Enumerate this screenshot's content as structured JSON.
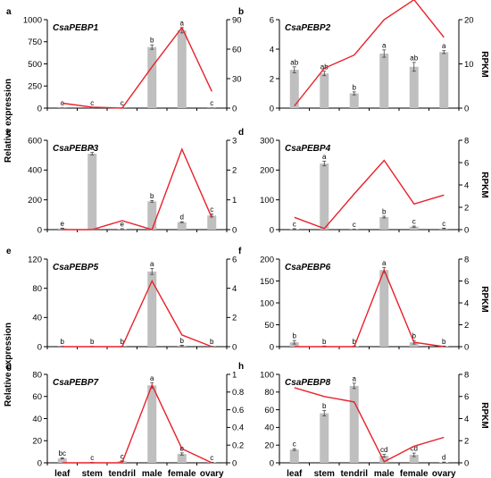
{
  "figure": {
    "left_axis_title": "Relative expression",
    "right_axis_title": "RPKM",
    "bar_color": "#bfbfbf",
    "line_color": "#e8212a"
  },
  "chart_data": [
    {
      "type": "bar+line",
      "panel": "a",
      "title": "CsaPEBP1",
      "categories": [
        "leaf",
        "stem",
        "tendril",
        "male",
        "female",
        "ovary"
      ],
      "show_xlabels": false,
      "y_left": {
        "lim": [
          0,
          1000
        ],
        "ticks": [
          0,
          250,
          500,
          750,
          1000
        ],
        "tick_labels": [
          "0",
          "250",
          "500",
          "750",
          "1000"
        ]
      },
      "y_right": {
        "lim": [
          0,
          90
        ],
        "ticks": [
          0,
          30,
          60,
          90
        ],
        "tick_labels": [
          "0",
          "30",
          "60",
          "90"
        ]
      },
      "series": [
        {
          "kind": "bar",
          "values": [
            2,
            2,
            2,
            690,
            880,
            2
          ],
          "errors": [
            1,
            1,
            1,
            25,
            30,
            1
          ],
          "labels": [
            "c",
            "c",
            "c",
            "b",
            "a",
            "c"
          ]
        },
        {
          "kind": "line",
          "values": [
            5,
            1,
            0,
            42,
            82,
            17
          ]
        }
      ]
    },
    {
      "type": "bar+line",
      "panel": "b",
      "title": "CsaPEBP2",
      "categories": [
        "leaf",
        "stem",
        "tendril",
        "male",
        "female",
        "ovary"
      ],
      "show_xlabels": false,
      "y_left": {
        "lim": [
          0,
          6
        ],
        "ticks": [
          0,
          2,
          4,
          6
        ],
        "tick_labels": [
          "0",
          "2",
          "4",
          "6"
        ]
      },
      "y_right": {
        "lim": [
          0,
          20
        ],
        "ticks": [
          0,
          10,
          20
        ],
        "tick_labels": [
          "0",
          "10",
          "20"
        ]
      },
      "series": [
        {
          "kind": "bar",
          "values": [
            2.6,
            2.35,
            1.0,
            3.7,
            2.8,
            3.8
          ],
          "errors": [
            0.2,
            0.15,
            0.1,
            0.25,
            0.3,
            0.1
          ],
          "labels": [
            "ab",
            "ab",
            "b",
            "a",
            "ab",
            "a"
          ]
        },
        {
          "kind": "line",
          "values": [
            0.5,
            9,
            12,
            20,
            24.5,
            16
          ]
        }
      ]
    },
    {
      "type": "bar+line",
      "panel": "c",
      "title": "CsaPEBP3",
      "categories": [
        "leaf",
        "stem",
        "tendril",
        "male",
        "female",
        "ovary"
      ],
      "show_xlabels": false,
      "y_left": {
        "lim": [
          0,
          600
        ],
        "ticks": [
          0,
          200,
          400,
          600
        ],
        "tick_labels": [
          "0",
          "200",
          "400",
          "600"
        ]
      },
      "y_right": {
        "lim": [
          0,
          3
        ],
        "ticks": [
          0,
          1,
          2,
          3
        ],
        "tick_labels": [
          "0",
          "1",
          "2",
          "3"
        ]
      },
      "series": [
        {
          "kind": "bar",
          "values": [
            8,
            510,
            5,
            190,
            50,
            95
          ],
          "errors": [
            2,
            8,
            1,
            6,
            3,
            10
          ],
          "labels": [
            "e",
            "a",
            "e",
            "b",
            "d",
            "c"
          ]
        },
        {
          "kind": "line",
          "values": [
            0,
            0,
            0.3,
            0,
            2.7,
            0.4
          ]
        }
      ]
    },
    {
      "type": "bar+line",
      "panel": "d",
      "title": "CsaPEBP4",
      "categories": [
        "leaf",
        "stem",
        "tendril",
        "male",
        "female",
        "ovary"
      ],
      "show_xlabels": false,
      "y_left": {
        "lim": [
          0,
          300
        ],
        "ticks": [
          0,
          100,
          200,
          300
        ],
        "tick_labels": [
          "0",
          "100",
          "200",
          "300"
        ]
      },
      "y_right": {
        "lim": [
          0,
          8
        ],
        "ticks": [
          0,
          2,
          4,
          6,
          8
        ],
        "tick_labels": [
          "0",
          "2",
          "4",
          "6",
          "8"
        ]
      },
      "series": [
        {
          "kind": "bar",
          "values": [
            2,
            222,
            1,
            42,
            10,
            4
          ],
          "errors": [
            1,
            8,
            0.5,
            3,
            2,
            1
          ],
          "labels": [
            "c",
            "a",
            "c",
            "b",
            "c",
            "c"
          ]
        },
        {
          "kind": "line",
          "values": [
            1.1,
            0.1,
            3.2,
            6.2,
            2.3,
            3.1
          ]
        }
      ]
    },
    {
      "type": "bar+line",
      "panel": "e",
      "title": "CsaPEBP5",
      "categories": [
        "leaf",
        "stem",
        "tendril",
        "male",
        "female",
        "ovary"
      ],
      "show_xlabels": false,
      "y_left": {
        "lim": [
          0,
          120
        ],
        "ticks": [
          0,
          40,
          80,
          120
        ],
        "tick_labels": [
          "0",
          "40",
          "80",
          "120"
        ]
      },
      "y_right": {
        "lim": [
          0,
          6
        ],
        "ticks": [
          0,
          2,
          4,
          6
        ],
        "tick_labels": [
          "0",
          "2",
          "4",
          "6"
        ]
      },
      "series": [
        {
          "kind": "bar",
          "values": [
            0.3,
            0.3,
            0.3,
            103,
            1.5,
            0.3
          ],
          "errors": [
            0.2,
            0.2,
            0.2,
            4,
            0.5,
            0.2
          ],
          "labels": [
            "b",
            "b",
            "b",
            "a",
            "b",
            "b"
          ]
        },
        {
          "kind": "line",
          "values": [
            0,
            0,
            0,
            4.5,
            0.8,
            0
          ]
        }
      ]
    },
    {
      "type": "bar+line",
      "panel": "f",
      "title": "CsaPEBP6",
      "categories": [
        "leaf",
        "stem",
        "tendril",
        "male",
        "female",
        "ovary"
      ],
      "show_xlabels": false,
      "y_left": {
        "lim": [
          0,
          200
        ],
        "ticks": [
          0,
          50,
          100,
          150,
          200
        ],
        "tick_labels": [
          "0",
          "50",
          "100",
          "150",
          "200"
        ]
      },
      "y_right": {
        "lim": [
          0,
          8
        ],
        "ticks": [
          0,
          2,
          4,
          6,
          8
        ],
        "tick_labels": [
          "0",
          "2",
          "4",
          "6",
          "8"
        ]
      },
      "series": [
        {
          "kind": "bar",
          "values": [
            10,
            1,
            1,
            175,
            10,
            1
          ],
          "errors": [
            4,
            0.5,
            0.5,
            6,
            4,
            0.5
          ],
          "labels": [
            "b",
            "b",
            "b",
            "a",
            "b",
            "b"
          ]
        },
        {
          "kind": "line",
          "values": [
            0,
            0,
            0,
            7.0,
            0.4,
            0
          ]
        }
      ]
    },
    {
      "type": "bar+line",
      "panel": "g",
      "title": "CsaPEBP7",
      "categories": [
        "leaf",
        "stem",
        "tendril",
        "male",
        "female",
        "ovary"
      ],
      "show_xlabels": true,
      "y_left": {
        "lim": [
          0,
          80
        ],
        "ticks": [
          0,
          20,
          40,
          60,
          80
        ],
        "tick_labels": [
          "0",
          "20",
          "40",
          "60",
          "80"
        ]
      },
      "y_right": {
        "lim": [
          0,
          1
        ],
        "ticks": [
          0,
          0.2,
          0.4,
          0.6,
          0.8,
          1
        ],
        "tick_labels": [
          "0",
          "0.2",
          "0.4",
          "0.6",
          "0.8",
          "1"
        ]
      },
      "series": [
        {
          "kind": "bar",
          "values": [
            4,
            0.3,
            1.5,
            70,
            8,
            0.3
          ],
          "errors": [
            0.5,
            0.2,
            0.3,
            2.5,
            1,
            0.2
          ],
          "labels": [
            "bc",
            "c",
            "c",
            "a",
            "b",
            "c"
          ]
        },
        {
          "kind": "line",
          "values": [
            0,
            0,
            0,
            0.88,
            0.16,
            0
          ]
        }
      ]
    },
    {
      "type": "bar+line",
      "panel": "h",
      "title": "CsaPEBP8",
      "categories": [
        "leaf",
        "stem",
        "tendril",
        "male",
        "female",
        "ovary"
      ],
      "show_xlabels": true,
      "y_left": {
        "lim": [
          0,
          100
        ],
        "ticks": [
          0,
          20,
          40,
          60,
          80,
          100
        ],
        "tick_labels": [
          "0",
          "20",
          "40",
          "60",
          "80",
          "100"
        ]
      },
      "y_right": {
        "lim": [
          0,
          8
        ],
        "ticks": [
          0,
          2,
          4,
          6,
          8
        ],
        "tick_labels": [
          "0",
          "2",
          "4",
          "6",
          "8"
        ]
      },
      "series": [
        {
          "kind": "bar",
          "values": [
            15,
            56,
            87,
            8,
            9,
            0.5
          ],
          "errors": [
            1,
            3,
            3,
            1.5,
            2,
            0.3
          ],
          "labels": [
            "c",
            "b",
            "a",
            "cd",
            "cd",
            "d"
          ]
        },
        {
          "kind": "line",
          "values": [
            6.8,
            6.0,
            5.5,
            0.1,
            1.5,
            2.3
          ]
        }
      ]
    }
  ]
}
